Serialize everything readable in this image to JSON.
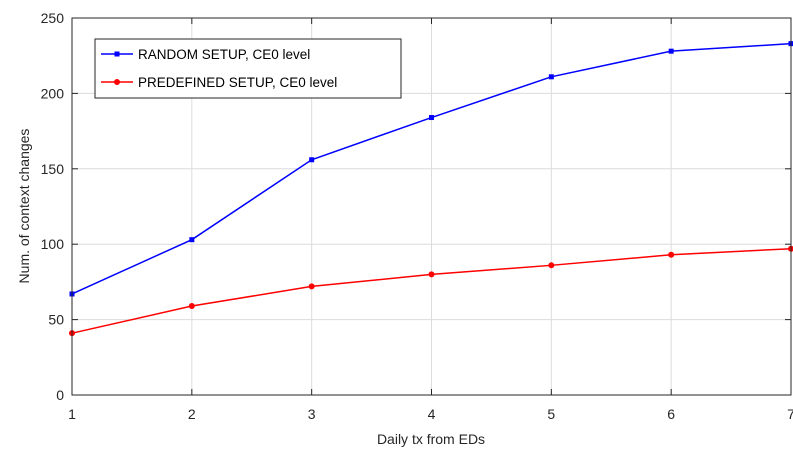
{
  "chart_data": {
    "type": "line",
    "title": "",
    "xlabel": "Daily tx from EDs",
    "ylabel": "Num. of context changes",
    "x": [
      1,
      2,
      3,
      4,
      5,
      6,
      7
    ],
    "xlim": [
      1,
      7
    ],
    "ylim": [
      0,
      250
    ],
    "xticks": [
      1,
      2,
      3,
      4,
      5,
      6,
      7
    ],
    "yticks": [
      0,
      50,
      100,
      150,
      200,
      250
    ],
    "grid": true,
    "legend_position": "top-left",
    "series": [
      {
        "name": "RANDOM SETUP, CE0 level",
        "color": "#0000ff",
        "marker": "square",
        "values": [
          67,
          103,
          156,
          184,
          211,
          228,
          233
        ]
      },
      {
        "name": "PREDEFINED SETUP, CE0 level",
        "color": "#ff0000",
        "marker": "circle",
        "values": [
          41,
          59,
          72,
          80,
          86,
          93,
          97
        ]
      }
    ]
  }
}
